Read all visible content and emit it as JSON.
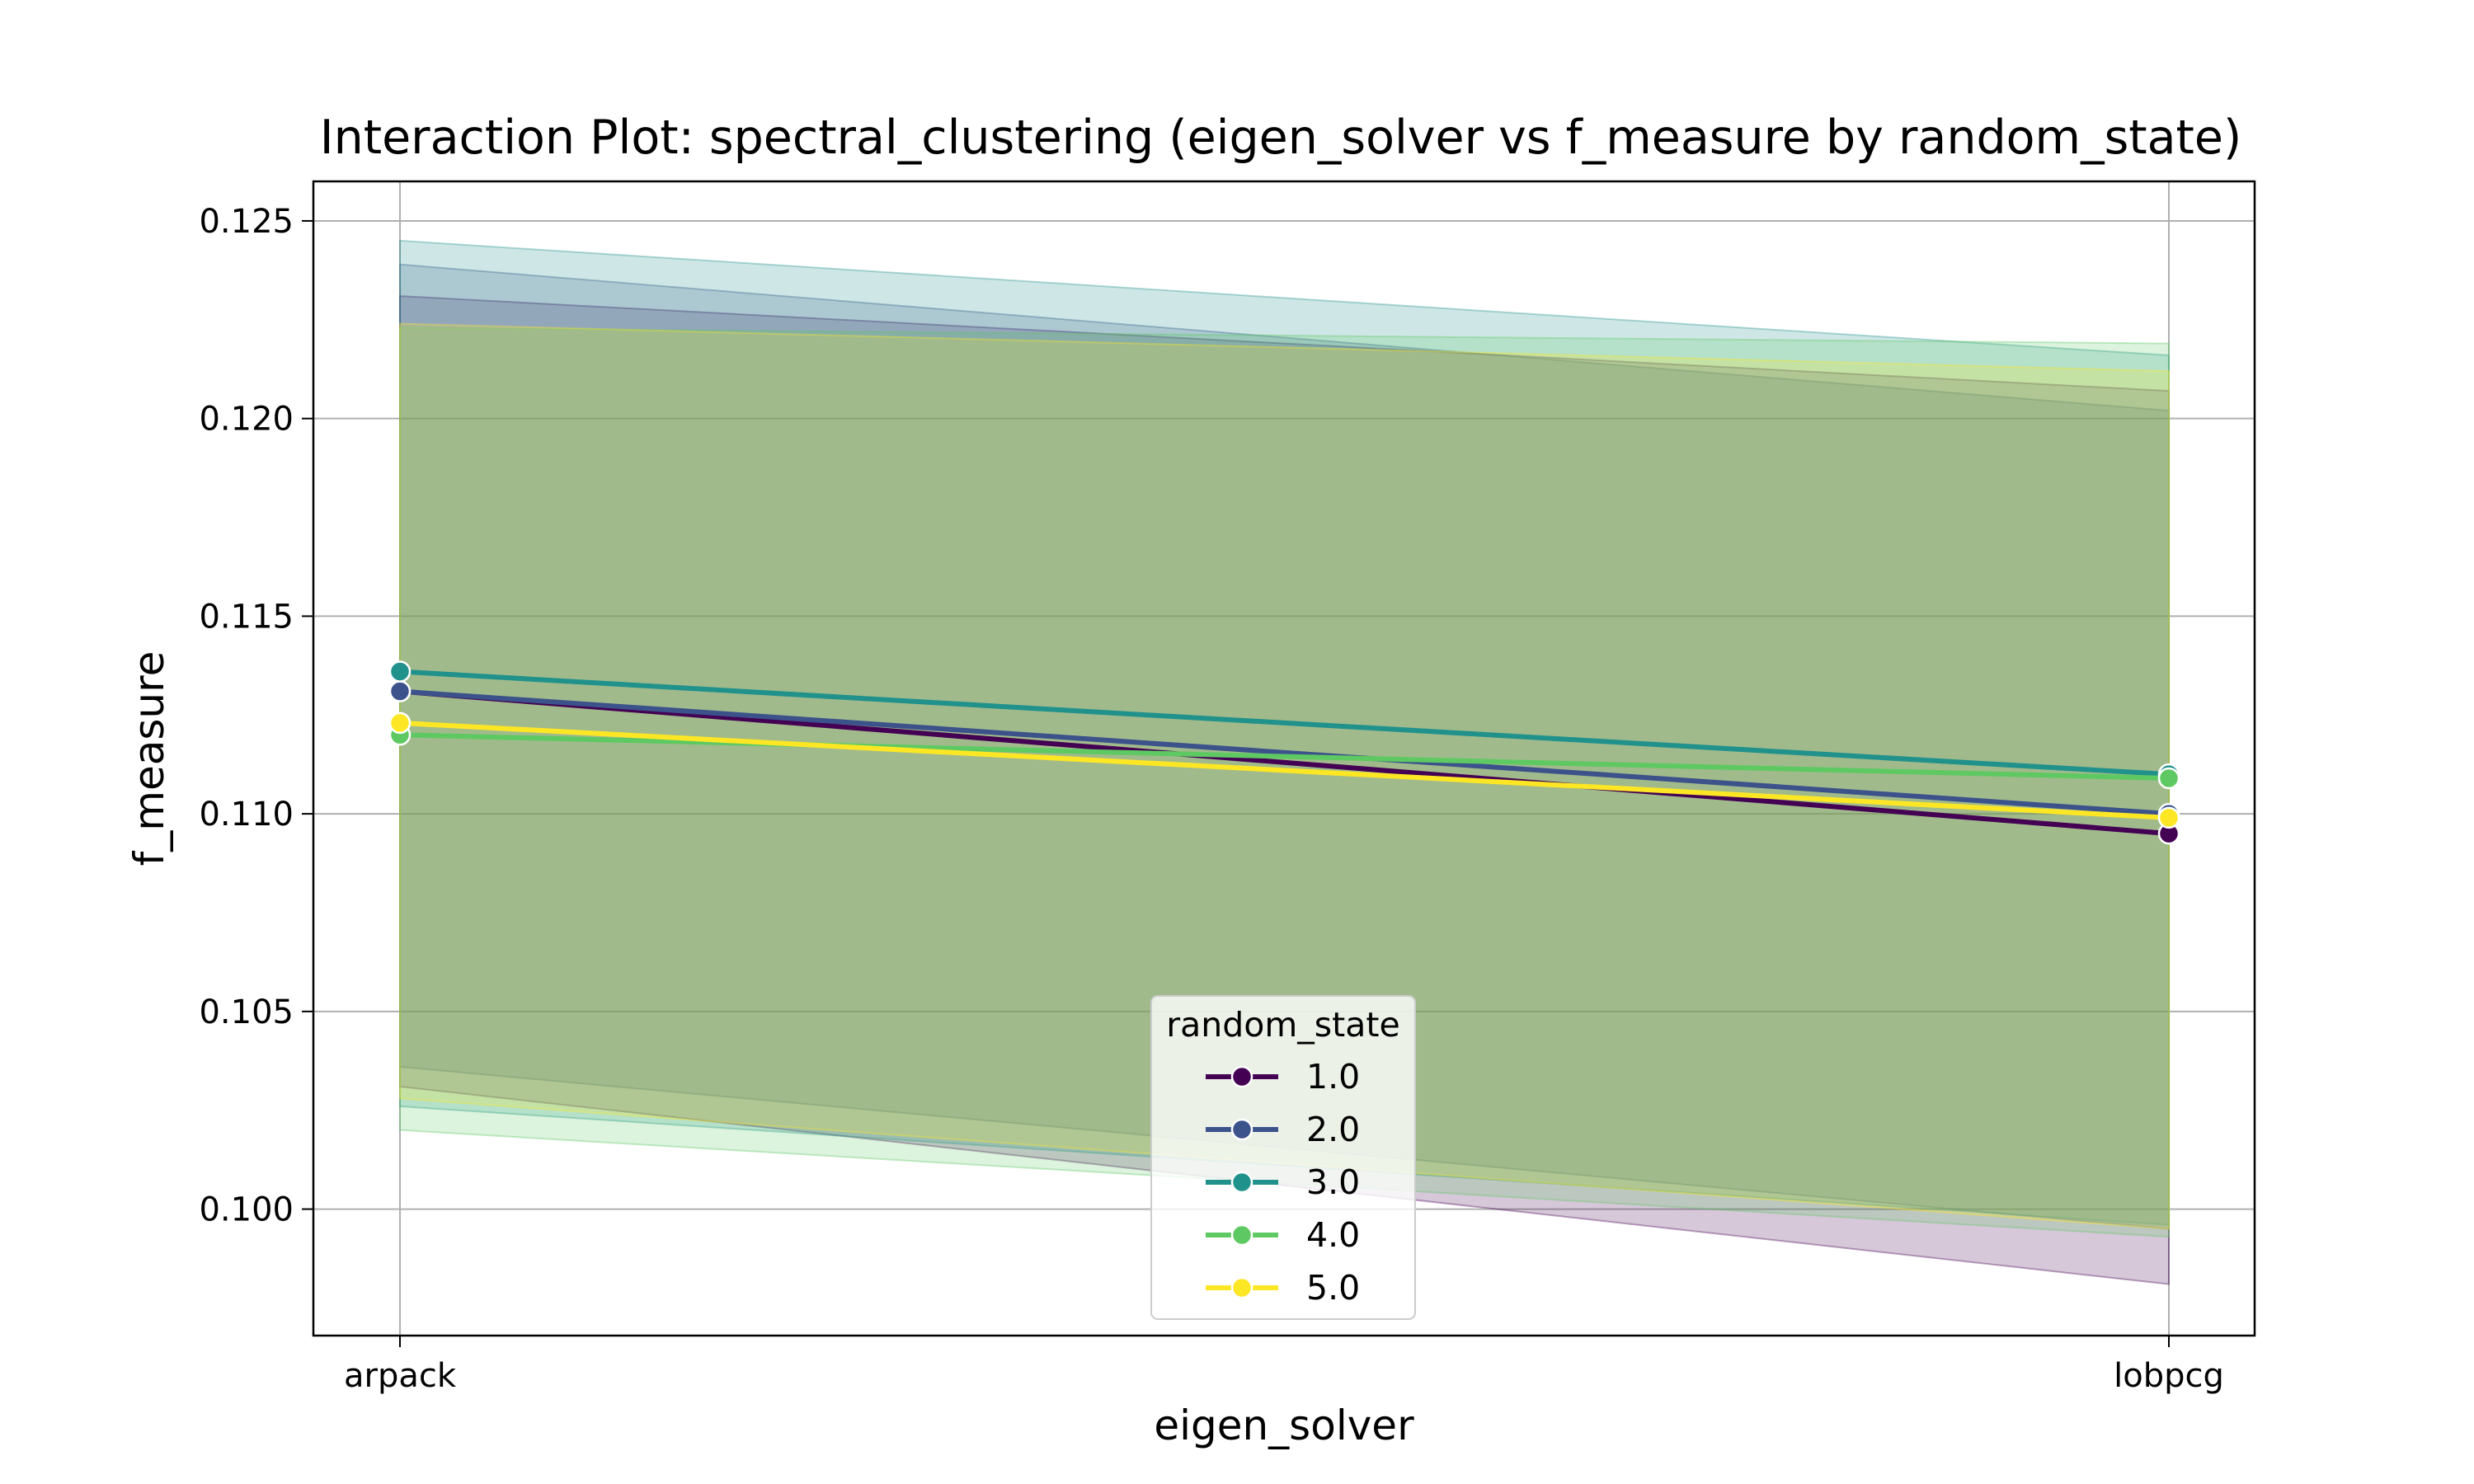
{
  "chart_data": {
    "type": "line",
    "title": "Interaction Plot: spectral_clustering (eigen_solver vs f_measure by random_state)",
    "xlabel": "eigen_solver",
    "ylabel": "f_measure",
    "categories": [
      "arpack",
      "lobpcg"
    ],
    "ylim": [
      0.0968,
      0.126
    ],
    "yticks": [
      0.1,
      0.105,
      0.11,
      0.115,
      0.12,
      0.125
    ],
    "ytick_labels": [
      "0.100",
      "0.105",
      "0.110",
      "0.115",
      "0.120",
      "0.125"
    ],
    "grid": true,
    "legend": {
      "title": "random_state",
      "placement": "lower-center"
    },
    "series": [
      {
        "name": "1.0",
        "color": "#440154",
        "values": [
          0.1131,
          0.1095
        ],
        "ci_low": [
          0.1031,
          0.0981
        ],
        "ci_high": [
          0.1231,
          0.1207
        ]
      },
      {
        "name": "2.0",
        "color": "#3b528b",
        "values": [
          0.1131,
          0.11
        ],
        "ci_low": [
          0.1036,
          0.0995
        ],
        "ci_high": [
          0.1239,
          0.1202
        ]
      },
      {
        "name": "3.0",
        "color": "#21918c",
        "values": [
          0.1136,
          0.111
        ],
        "ci_low": [
          0.1026,
          0.0996
        ],
        "ci_high": [
          0.1245,
          0.1216
        ]
      },
      {
        "name": "4.0",
        "color": "#5ec962",
        "values": [
          0.112,
          0.1109
        ],
        "ci_low": [
          0.102,
          0.0993
        ],
        "ci_high": [
          0.1223,
          0.1219
        ]
      },
      {
        "name": "5.0",
        "color": "#fde725",
        "values": [
          0.1123,
          0.1099
        ],
        "ci_low": [
          0.1028,
          0.0995
        ],
        "ci_high": [
          0.1224,
          0.1212
        ]
      }
    ]
  }
}
